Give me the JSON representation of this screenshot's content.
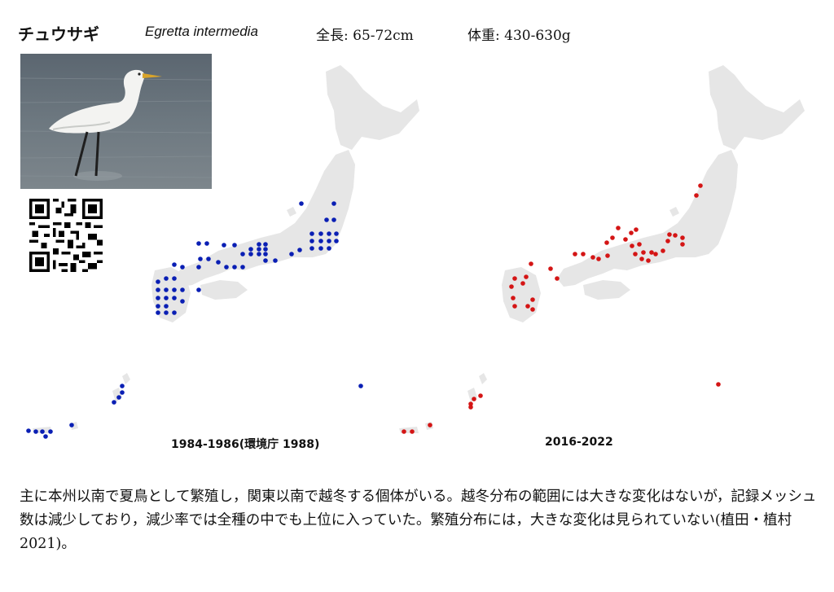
{
  "header": {
    "name_ja": "チュウサギ",
    "name_scientific": "Egretta intermedia",
    "length": "全長: 65-72cm",
    "weight": "体重: 430-630g"
  },
  "photo": {
    "subject": "egret standing in shallow water"
  },
  "qr": {
    "icon": "qr-code-icon"
  },
  "maps": [
    {
      "caption": "1984-1986(環境庁 1988)",
      "dot_color": "#0a1fb4",
      "land_color": "#e6e6e6"
    },
    {
      "caption": "2016-2022",
      "dot_color": "#d41515",
      "land_color": "#e6e6e6"
    }
  ],
  "description": "主に本州以南で夏鳥として繁殖し，関東以南で越冬する個体がいる。越冬分布の範囲には大きな変化はないが，記録メッシュ数は減少しており，減少率では全種の中でも上位に入っていた。繁殖分布には，大きな変化は見られていない(植田・植村 2021)。"
}
